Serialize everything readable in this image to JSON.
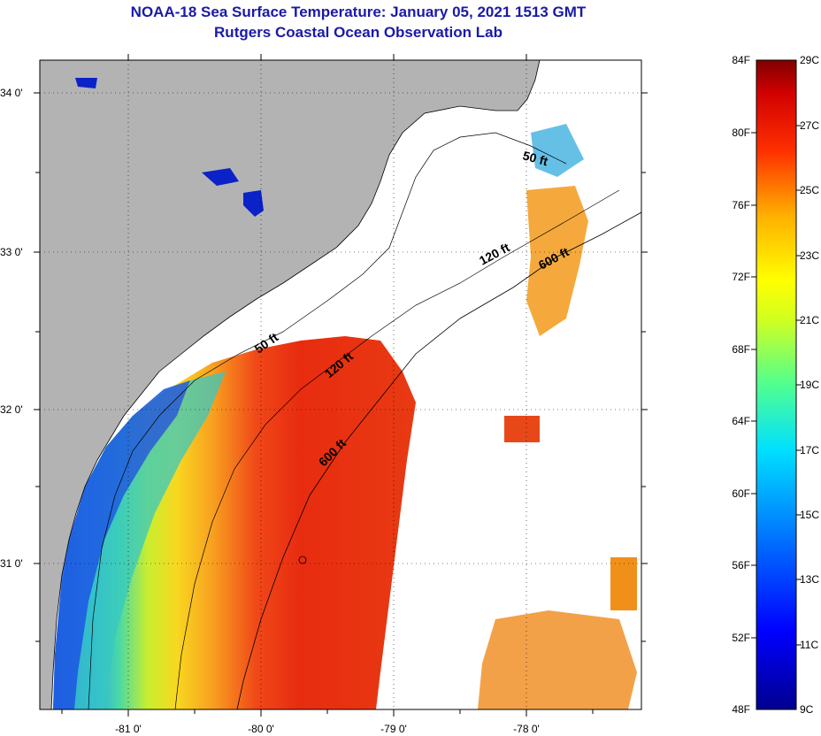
{
  "title": {
    "line1": "NOAA-18 Sea Surface Temperature:  January 05, 2021 1513 GMT",
    "line2": "Rutgers Coastal Ocean Observation Lab"
  },
  "map": {
    "lat_ticks": [
      "34 0'",
      "33 0'",
      "32 0'",
      "31 0'"
    ],
    "lon_ticks": [
      "-81 0'",
      "-80 0'",
      "-79 0'",
      "-78 0'"
    ],
    "contour_labels": {
      "c50_a": "50 ft",
      "c50_b": "50 ft",
      "c120_a": "120 ft",
      "c120_b": "120 ft",
      "c600_a": "600 ft",
      "c600_b": "600 ft"
    }
  },
  "colorbar": {
    "fahrenheit": [
      "84F",
      "80F",
      "76F",
      "72F",
      "68F",
      "64F",
      "60F",
      "56F",
      "52F",
      "48F"
    ],
    "celsius": [
      "29C",
      "27C",
      "25C",
      "23C",
      "21C",
      "19C",
      "17C",
      "15C",
      "13C",
      "11C",
      "9C"
    ]
  },
  "colors": {
    "title": "#1a1aa8",
    "land": "#b3b3b3",
    "warm": "#e83a12",
    "cold": "#1f5fe0"
  }
}
